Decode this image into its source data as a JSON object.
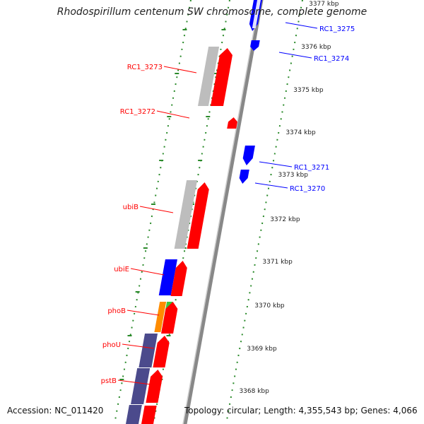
{
  "title": "Rhodospirillum centenum SW chromosome, complete genome",
  "footer": {
    "accession": "Accession: NC_011420",
    "topology": "Topology: circular; Length: 4,355,543 bp; Genes: 4,066"
  },
  "colors": {
    "forward": "#ff0000",
    "reverse": "#0000ff",
    "backbone": "#888888",
    "ruler_ticks": "#2a8a2a",
    "gray_feature": "#bdbdbd",
    "purple_feature": "#4b4a8c",
    "orange_feature": "#ff8c00",
    "green_feature": "#3cc43c"
  },
  "tick_labels": [
    "3377 kbp",
    "3376 kbp",
    "3375 kbp",
    "3374 kbp",
    "3373 kbp",
    "3372 kbp",
    "3371 kbp",
    "3370 kbp",
    "3369 kbp",
    "3368 kbp"
  ],
  "right_genes": [
    "RC1_3275",
    "RC1_3274",
    "RC1_3271",
    "RC1_3270"
  ],
  "left_genes": [
    "RC1_3273",
    "RC1_3272",
    "ubiB",
    "ubiE",
    "phoB",
    "phoU",
    "pstB"
  ]
}
